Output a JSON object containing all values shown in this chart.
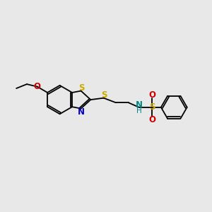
{
  "bg_color": "#e8e8e8",
  "bond_color": "#000000",
  "S_color": "#ccaa00",
  "N_color": "#0000cc",
  "O_color": "#cc0000",
  "NH_color": "#008888",
  "figsize": [
    3.0,
    3.0
  ],
  "dpi": 100,
  "xlim": [
    0,
    10
  ],
  "ylim": [
    0,
    10
  ],
  "lw": 1.3,
  "fs": 8.5
}
